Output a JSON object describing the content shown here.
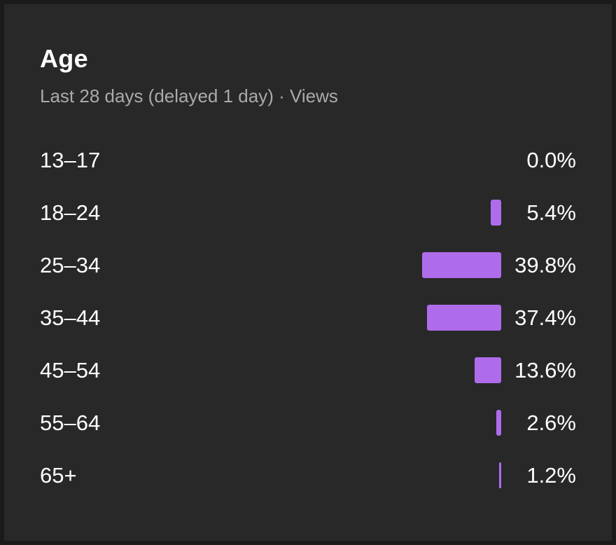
{
  "card": {
    "title": "Age",
    "subtitle": "Last 28 days (delayed 1 day) · Views"
  },
  "colors": {
    "background": "#282828",
    "bar": "#ae6ceb",
    "text": "#ffffff",
    "subtext": "#aaaaaa"
  },
  "chart_data": {
    "type": "bar",
    "orientation": "horizontal",
    "title": "Age",
    "subtitle": "Last 28 days (delayed 1 day) · Views",
    "categories": [
      "13–17",
      "18–24",
      "25–34",
      "35–44",
      "45–54",
      "55–64",
      "65+"
    ],
    "values": [
      0.0,
      5.4,
      39.8,
      37.4,
      13.6,
      2.6,
      1.2
    ],
    "value_labels": [
      "0.0%",
      "5.4%",
      "39.8%",
      "37.4%",
      "13.6%",
      "2.6%",
      "1.2%"
    ],
    "unit": "%",
    "grid": false,
    "legend": "none"
  }
}
